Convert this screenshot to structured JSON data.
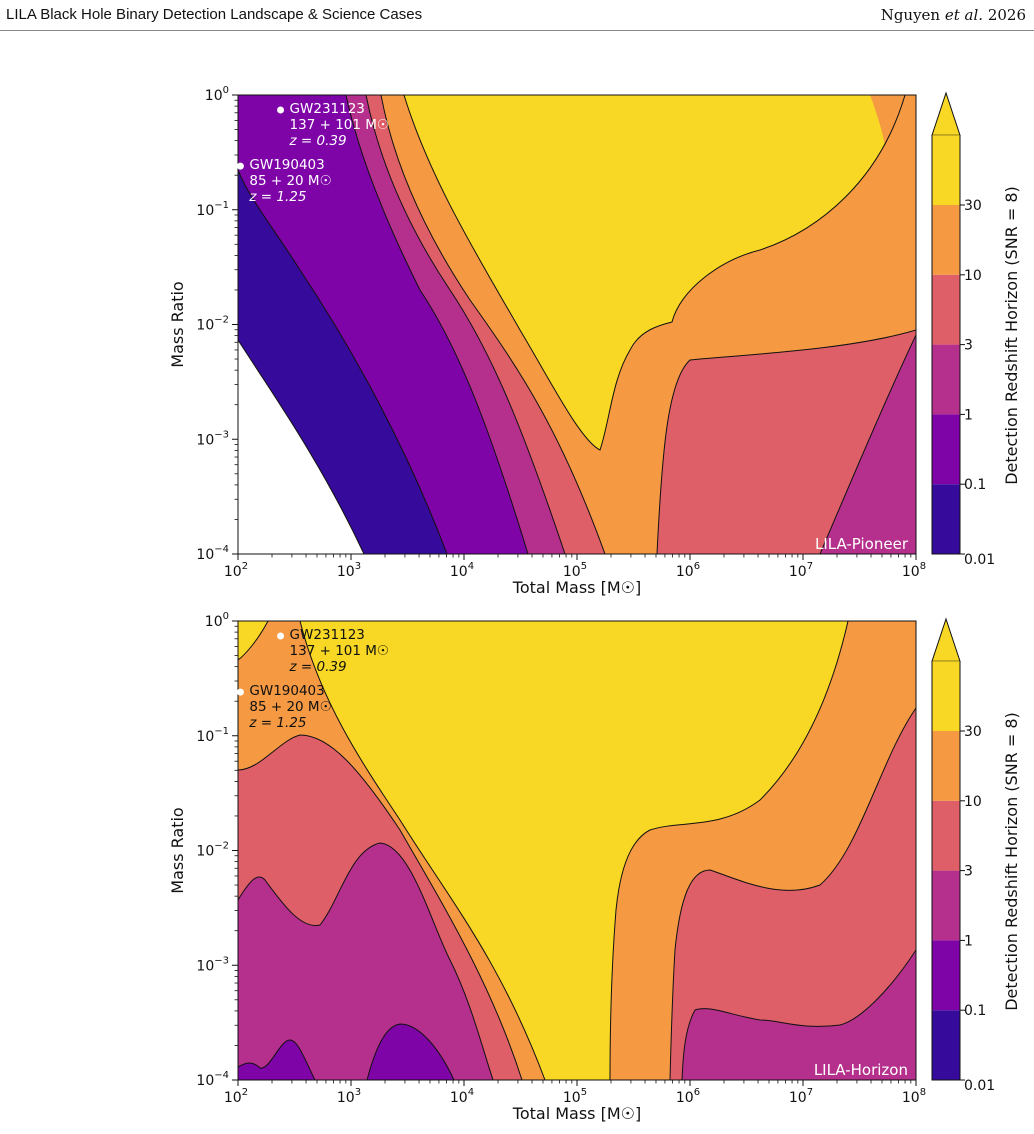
{
  "header": {
    "left": "LILA Black Hole Binary Detection Landscape & Science Cases",
    "right_author": "Nguyen ",
    "right_etal": "et al.",
    "right_year": " 2026"
  },
  "chart_data": [
    {
      "type": "filled-contour",
      "panel_label": "LILA-Pioneer",
      "xlabel": "Total Mass [M☉]",
      "ylabel": "Mass Ratio",
      "x_scale": "log",
      "y_scale": "log",
      "xlim": [
        100,
        100000000
      ],
      "ylim": [
        0.0001,
        1
      ],
      "x_ticks": [
        {
          "v": 2,
          "label": "10",
          "exp": "2"
        },
        {
          "v": 3,
          "label": "10",
          "exp": "3"
        },
        {
          "v": 4,
          "label": "10",
          "exp": "4"
        },
        {
          "v": 5,
          "label": "10",
          "exp": "5"
        },
        {
          "v": 6,
          "label": "10",
          "exp": "6"
        },
        {
          "v": 7,
          "label": "10",
          "exp": "7"
        },
        {
          "v": 8,
          "label": "10",
          "exp": "8"
        }
      ],
      "y_ticks": [
        {
          "v": 0,
          "label": "10",
          "exp": "0"
        },
        {
          "v": -1,
          "label": "10",
          "exp": "−1"
        },
        {
          "v": -2,
          "label": "10",
          "exp": "−2"
        },
        {
          "v": -3,
          "label": "10",
          "exp": "−3"
        },
        {
          "v": -4,
          "label": "10",
          "exp": "−4"
        }
      ],
      "colorbar": {
        "label": "Detection Redshift Horizon (SNR = 8)",
        "levels": [
          "0.01",
          "0.1",
          "1",
          "3",
          "10",
          "30"
        ],
        "extend": "max"
      },
      "boundaries_log10": [
        [
          [
            2,
            -2.1
          ],
          [
            3.25,
            -4
          ]
        ],
        [
          [
            2,
            -0.4
          ],
          [
            2.5,
            -0.7
          ],
          [
            3.9,
            -4
          ]
        ],
        [
          [
            2.8,
            0
          ],
          [
            3.2,
            -0.8
          ],
          [
            4.6,
            -4
          ]
        ],
        [
          [
            3.1,
            0
          ],
          [
            3.6,
            -1.1
          ],
          [
            4.9,
            -4
          ]
        ],
        [
          [
            3.35,
            0
          ],
          [
            3.9,
            -1.0
          ],
          [
            5.3,
            -4
          ]
        ],
        [
          [
            3.55,
            0
          ],
          [
            4.4,
            -1.8
          ],
          [
            4.8,
            -2.5
          ],
          [
            5.0,
            -3.1
          ],
          [
            5.15,
            -2.6
          ],
          [
            5.4,
            -2.0
          ],
          [
            5.9,
            -1.5
          ],
          [
            6.5,
            -0.5
          ],
          [
            6.9,
            0
          ]
        ],
        [
          [
            6.7,
            0
          ],
          [
            7.2,
            -0.6
          ],
          [
            7.4,
            -1.3
          ],
          [
            7.1,
            -1.7
          ],
          [
            6.6,
            -1.95
          ],
          [
            6.3,
            -2.0
          ],
          [
            6.2,
            -2.5
          ],
          [
            6.0,
            -3.0
          ],
          [
            5.75,
            -3.4
          ],
          [
            5.7,
            -4
          ]
        ],
        [
          [
            8,
            -2.1
          ],
          [
            7.75,
            -3
          ],
          [
            7.5,
            -4
          ]
        ]
      ],
      "annotations": [
        {
          "name": "GW231123",
          "lines": [
            "GW231123",
            "137 + 101 M☉",
            "z = 0.39"
          ],
          "total_mass": 238,
          "mass_ratio": 0.74,
          "color": "#ffffff"
        },
        {
          "name": "GW190403",
          "lines": [
            "GW190403",
            "85 + 20 M☉",
            "z = 1.25"
          ],
          "total_mass": 105,
          "mass_ratio": 0.24,
          "color": "#ffffff"
        }
      ]
    },
    {
      "type": "filled-contour",
      "panel_label": "LILA-Horizon",
      "xlabel": "Total Mass [M☉]",
      "ylabel": "Mass Ratio",
      "x_scale": "log",
      "y_scale": "log",
      "xlim": [
        100,
        100000000
      ],
      "ylim": [
        0.0001,
        1
      ],
      "x_ticks": [
        {
          "v": 2,
          "label": "10",
          "exp": "2"
        },
        {
          "v": 3,
          "label": "10",
          "exp": "3"
        },
        {
          "v": 4,
          "label": "10",
          "exp": "4"
        },
        {
          "v": 5,
          "label": "10",
          "exp": "5"
        },
        {
          "v": 6,
          "label": "10",
          "exp": "6"
        },
        {
          "v": 7,
          "label": "10",
          "exp": "7"
        },
        {
          "v": 8,
          "label": "10",
          "exp": "8"
        }
      ],
      "y_ticks": [
        {
          "v": 0,
          "label": "10",
          "exp": "0"
        },
        {
          "v": -1,
          "label": "10",
          "exp": "−1"
        },
        {
          "v": -2,
          "label": "10",
          "exp": "−2"
        },
        {
          "v": -3,
          "label": "10",
          "exp": "−3"
        },
        {
          "v": -4,
          "label": "10",
          "exp": "−4"
        }
      ],
      "colorbar": {
        "label": "Detection Redshift Horizon (SNR = 8)",
        "levels": [
          "0.01",
          "0.1",
          "1",
          "3",
          "10",
          "30"
        ],
        "extend": "max"
      },
      "boundaries_log10": [
        [
          [
            2,
            -0.35
          ],
          [
            2.1,
            -0.15
          ],
          [
            2.3,
            0
          ]
        ],
        [
          [
            2,
            -1.3
          ],
          [
            2.3,
            -1.3
          ],
          [
            2.6,
            -1.0
          ],
          [
            3.0,
            -1.3
          ],
          [
            3.6,
            -2.2
          ],
          [
            4.6,
            -4
          ]
        ],
        [
          [
            2,
            -2.4
          ],
          [
            2.2,
            -2.1
          ],
          [
            2.4,
            -2.4
          ],
          [
            2.8,
            -2.6
          ],
          [
            3.1,
            -2.4
          ],
          [
            3.4,
            -2.7
          ],
          [
            3.8,
            -3.5
          ],
          [
            4.2,
            -4
          ]
        ],
        [
          [
            2,
            -3.95
          ],
          [
            2.2,
            -3.8
          ],
          [
            2.3,
            -3.9
          ],
          [
            2.5,
            -3.7
          ],
          [
            2.75,
            -4
          ]
        ],
        [
          [
            3.15,
            -4
          ],
          [
            3.3,
            -3.6
          ],
          [
            3.5,
            -3.4
          ],
          [
            3.8,
            -3.7
          ],
          [
            3.95,
            -4
          ]
        ],
        [
          [
            2.55,
            0
          ],
          [
            3.0,
            -0.8
          ],
          [
            3.6,
            -1.8
          ],
          [
            4.4,
            -3.1
          ],
          [
            5.0,
            -4
          ]
        ],
        [
          [
            2.3,
            0
          ],
          [
            2.7,
            -0.7
          ],
          [
            3.3,
            -1.8
          ],
          [
            4.1,
            -3.1
          ],
          [
            4.8,
            -4
          ]
        ],
        [
          [
            7.4,
            0
          ],
          [
            7.0,
            -1.1
          ],
          [
            6.6,
            -1.9
          ],
          [
            6.0,
            -2.1
          ],
          [
            5.7,
            -2.2
          ],
          [
            5.35,
            -2.3
          ],
          [
            5.3,
            -2.6
          ],
          [
            5.25,
            -3.2
          ],
          [
            5.18,
            -4
          ]
        ],
        [
          [
            8,
            -0.75
          ],
          [
            7.4,
            -1.7
          ],
          [
            7.2,
            -2.3
          ],
          [
            7.0,
            -2.6
          ],
          [
            6.5,
            -2.75
          ],
          [
            6.2,
            -2.6
          ],
          [
            5.9,
            -2.5
          ],
          [
            5.75,
            -2.9
          ],
          [
            5.7,
            -3.3
          ],
          [
            5.65,
            -4
          ]
        ],
        [
          [
            8,
            -2.1
          ],
          [
            7.6,
            -2.6
          ],
          [
            7.2,
            -3.2
          ],
          [
            6.9,
            -3.3
          ],
          [
            6.7,
            -3.4
          ],
          [
            6.4,
            -3.3
          ],
          [
            6.1,
            -3.2
          ],
          [
            5.85,
            -3.5
          ],
          [
            5.8,
            -4
          ]
        ]
      ],
      "annotations": [
        {
          "name": "GW231123",
          "lines": [
            "GW231123",
            "137 + 101 M☉",
            "z = 0.39"
          ],
          "total_mass": 238,
          "mass_ratio": 0.74,
          "color": "#111111"
        },
        {
          "name": "GW190403",
          "lines": [
            "GW190403",
            "85 + 20 M☉",
            "z = 1.25"
          ],
          "total_mass": 105,
          "mass_ratio": 0.24,
          "color": "#111111"
        }
      ]
    }
  ]
}
